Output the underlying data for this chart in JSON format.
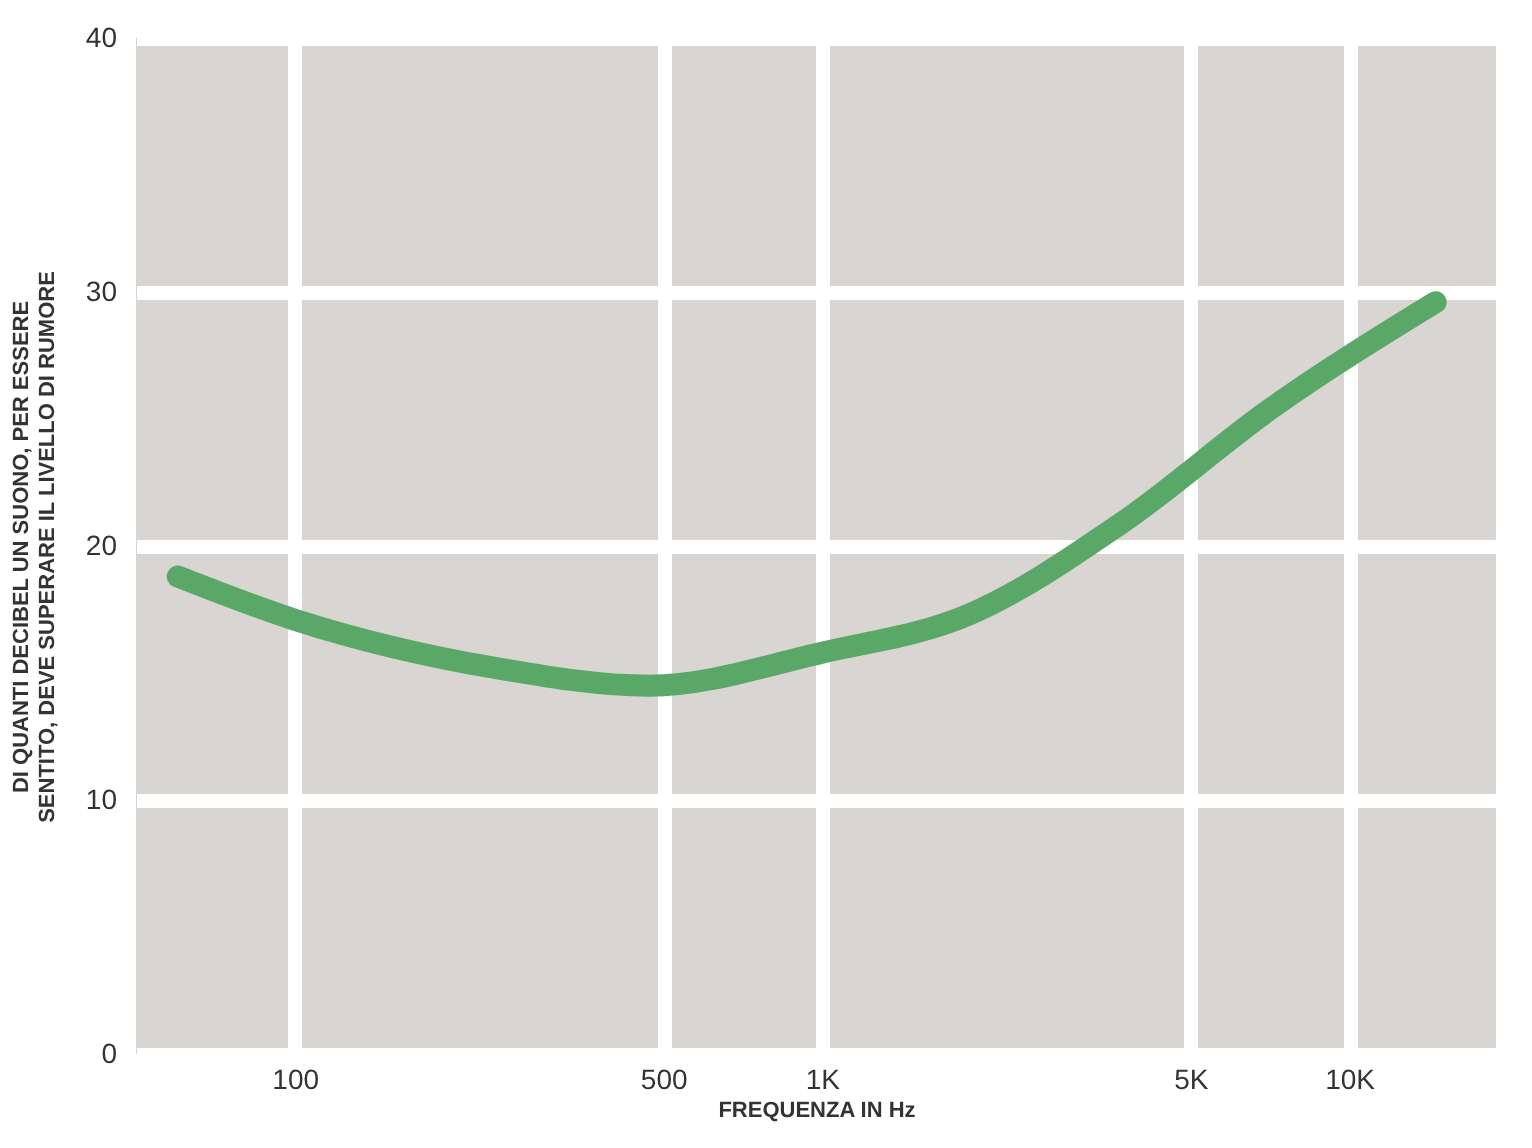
{
  "chart_data": {
    "type": "line",
    "xlabel": "FREQUENZA IN Hz",
    "ylabel": "DI QUANTI DECIBEL UN SUONO, PER ESSERE SENTITO, DEVE SUPERARE IL LIVELLO DI RUMORE",
    "log": "x",
    "x": [
      60,
      100,
      240,
      470,
      1000,
      1900,
      3700,
      7100,
      14600
    ],
    "series": [
      {
        "color": "#5aa867",
        "values": [
          18.8,
          17.1,
          15.2,
          14.5,
          15.8,
          17.3,
          20.9,
          25.4,
          29.6
        ]
      }
    ],
    "xlim": [
      50,
      19000
    ],
    "xticks": [
      100,
      500,
      {
        "value": 1000,
        "label": "1K"
      },
      {
        "value": 5000,
        "label": "5K"
      },
      {
        "value": 10000,
        "label": "10K"
      }
    ],
    "ylim": [
      0,
      40
    ],
    "yticks": [
      0,
      10,
      20,
      30,
      40
    ],
    "grid": true,
    "line_style": "solid"
  }
}
